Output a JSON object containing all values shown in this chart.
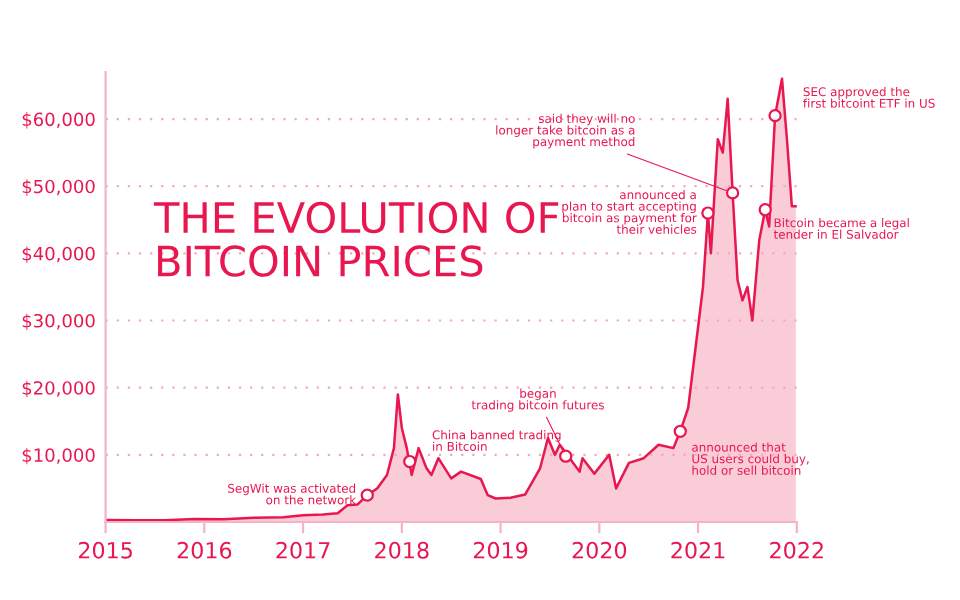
{
  "chart_data": {
    "type": "area",
    "title": "THE EVOLUTION OF\nBITCOIN PRICES",
    "x": [
      2015.0,
      2015.3,
      2015.6,
      2015.9,
      2016.2,
      2016.5,
      2016.8,
      2017.0,
      2017.2,
      2017.35,
      2017.45,
      2017.55,
      2017.65,
      2017.75,
      2017.85,
      2017.92,
      2017.96,
      2018.0,
      2018.05,
      2018.1,
      2018.17,
      2018.25,
      2018.3,
      2018.37,
      2018.5,
      2018.6,
      2018.8,
      2018.87,
      2018.95,
      2019.1,
      2019.25,
      2019.4,
      2019.48,
      2019.55,
      2019.6,
      2019.7,
      2019.8,
      2019.83,
      2019.95,
      2020.1,
      2020.17,
      2020.3,
      2020.45,
      2020.6,
      2020.75,
      2020.82,
      2020.9,
      2020.95,
      2021.0,
      2021.05,
      2021.1,
      2021.13,
      2021.2,
      2021.25,
      2021.3,
      2021.35,
      2021.4,
      2021.45,
      2021.5,
      2021.55,
      2021.62,
      2021.68,
      2021.72,
      2021.78,
      2021.85,
      2021.9,
      2021.95,
      2021.99
    ],
    "series": [
      {
        "color": "#e8174f",
        "values": [
          300,
          250,
          250,
          430,
          420,
          650,
          700,
          1000,
          1100,
          1300,
          2500,
          2600,
          4000,
          5000,
          7000,
          11000,
          19000,
          14000,
          11000,
          7000,
          11000,
          8000,
          7000,
          9500,
          6500,
          7500,
          6400,
          4000,
          3500,
          3600,
          4100,
          8000,
          12500,
          10000,
          11500,
          9500,
          7500,
          9500,
          7200,
          10000,
          5000,
          8800,
          9500,
          11500,
          11000,
          13500,
          17000,
          23000,
          29000,
          35000,
          46000,
          40000,
          57000,
          55000,
          63000,
          49000,
          36000,
          33000,
          35000,
          30000,
          42000,
          46500,
          44000,
          60500,
          66000,
          57000,
          47000,
          47000
        ]
      }
    ],
    "ylim": [
      0,
      67000
    ],
    "yticks": [
      {
        "value": 10000,
        "label": "$10,000"
      },
      {
        "value": 20000,
        "label": "$20,000"
      },
      {
        "value": 30000,
        "label": "$30,000"
      },
      {
        "value": 40000,
        "label": "$40,000"
      },
      {
        "value": 50000,
        "label": "$50,000"
      },
      {
        "value": 60000,
        "label": "$60,000"
      }
    ],
    "xlim": [
      2015,
      2022
    ],
    "xticks": [
      2015,
      2016,
      2017,
      2018,
      2019,
      2020,
      2021,
      2022
    ],
    "grid": "y",
    "annotations": [
      {
        "text": "SegWit was activated\non the network",
        "x": 2017.65,
        "y": 4000
      },
      {
        "text": "China banned trading\nin Bitcoin",
        "x": 2018.08,
        "y": 9000
      },
      {
        "text": "began\ntrading bitcoin futures",
        "x": 2019.66,
        "y": 9800
      },
      {
        "text": "announced that\nUS users could buy,\nhold or sell bitcoin",
        "x": 2020.82,
        "y": 13500
      },
      {
        "text": "announced a\nplan to start accepting\nbitcoin as payment for\ntheir vehicles",
        "x": 2021.1,
        "y": 46000
      },
      {
        "text": "said they will no\nlonger take bitcoin as a\npayment method",
        "x": 2021.35,
        "y": 49000
      },
      {
        "text": "Bitcoin became a legal\ntender in El Salvador",
        "x": 2021.68,
        "y": 46500
      },
      {
        "text": "SEC approved the\nfirst bitcoint ETF in US",
        "x": 2021.78,
        "y": 60500
      }
    ]
  }
}
